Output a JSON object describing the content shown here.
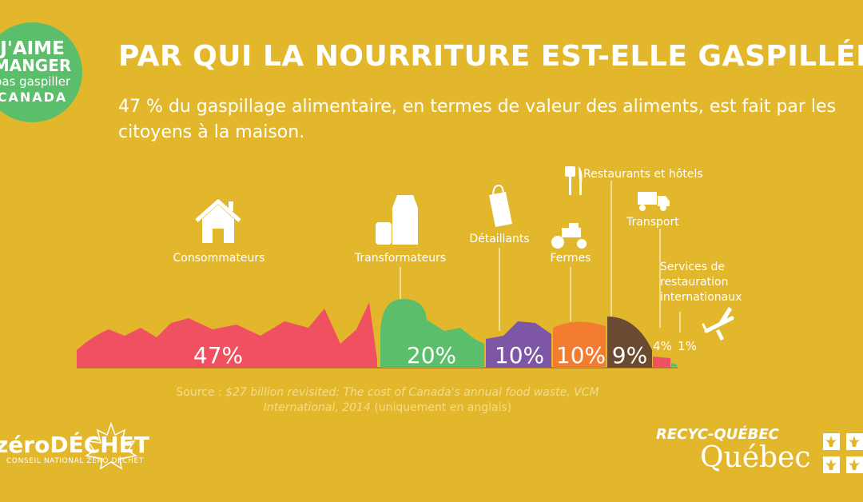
{
  "logo": {
    "line1": "J'AIME",
    "line2": "MANGER",
    "line3": "pas gaspiller",
    "line4": "CANADA"
  },
  "header": {
    "title": "PAR QUI LA NOURRITURE EST-ELLE GASPILLÉE?",
    "subtitle": "47 % du gaspillage alimentaire, en termes de valeur des aliments, est fait par les citoyens à la maison."
  },
  "chart_data": {
    "type": "bar",
    "categories": [
      "Consommateurs",
      "Transformateurs",
      "Détaillants",
      "Fermes",
      "Restaurants et hôtels",
      "Transport",
      "Services de restauration internationaux"
    ],
    "values": [
      47,
      20,
      10,
      10,
      9,
      4,
      1
    ],
    "value_labels": [
      "47%",
      "20%",
      "10%",
      "10%",
      "9%",
      "4%",
      "1%"
    ],
    "colors": [
      "#EF5160",
      "#5BBE6A",
      "#7D57A5",
      "#F47C30",
      "#6B4A32",
      "#EF5160",
      "#5BBE6A"
    ],
    "services_lines": [
      "Services de",
      "restauration",
      "internationaux"
    ]
  },
  "icons": [
    "house-icon",
    "milk-carton-icon",
    "shopping-bag-icon",
    "tractor-icon",
    "fork-knife-icon",
    "truck-icon",
    "airplane-icon"
  ],
  "source": {
    "prefix": "Source : ",
    "italic": "$27 billion revisited: The cost of Canada's annual food waste, VCM International, 2014",
    "suffix": " (uniquement en anglais)"
  },
  "footer": {
    "zero_logo": "zéroDÉCHET",
    "zero_sub": "CONSEIL NATIONAL ZÉRO DÉCHET",
    "recyc": "RECYC-QUÉBEC",
    "quebec": "Québec"
  }
}
